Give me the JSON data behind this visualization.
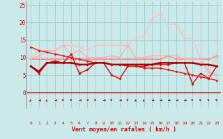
{
  "xlabel": "Vent moyen/en rafales ( km/h )",
  "xlim": [
    -0.5,
    23.5
  ],
  "ylim": [
    -4.5,
    26
  ],
  "yticks": [
    0,
    5,
    10,
    15,
    20,
    25
  ],
  "xticks": [
    0,
    1,
    2,
    3,
    4,
    5,
    6,
    7,
    8,
    9,
    10,
    11,
    12,
    13,
    14,
    15,
    16,
    17,
    18,
    19,
    20,
    21,
    22,
    23
  ],
  "bg_color": "#cce9e9",
  "grid_color": "#99cccc",
  "series": [
    {
      "y": [
        7.5,
        5.5,
        8.5,
        9.0,
        8.5,
        11.0,
        5.5,
        6.5,
        8.5,
        8.5,
        5.0,
        4.0,
        7.5,
        7.5,
        7.5,
        8.0,
        8.0,
        8.0,
        8.5,
        8.5,
        2.5,
        5.5,
        4.0,
        7.5
      ],
      "color": "#dd0000",
      "lw": 1.0,
      "marker": "D",
      "ms": 2.0,
      "zorder": 4
    },
    {
      "y": [
        7.5,
        6.0,
        8.5,
        8.5,
        8.5,
        8.5,
        8.0,
        8.0,
        8.5,
        8.5,
        8.0,
        8.0,
        8.0,
        8.0,
        8.0,
        8.0,
        8.5,
        8.5,
        8.5,
        8.5,
        8.5,
        8.0,
        8.0,
        7.5
      ],
      "color": "#aa0000",
      "lw": 1.8,
      "marker": "D",
      "ms": 2.0,
      "zorder": 5
    },
    {
      "y": [
        9.5,
        9.5,
        9.5,
        9.5,
        9.5,
        9.5,
        9.5,
        9.5,
        9.5,
        9.5,
        9.5,
        9.5,
        9.5,
        9.5,
        9.5,
        9.5,
        9.5,
        10.5,
        9.5,
        9.5,
        9.5,
        9.5,
        9.5,
        10.5
      ],
      "color": "#ff8888",
      "lw": 1.0,
      "marker": "D",
      "ms": 2.0,
      "zorder": 3
    },
    {
      "y": [
        9.5,
        10.5,
        12.0,
        12.0,
        13.5,
        11.0,
        12.0,
        10.0,
        10.0,
        10.0,
        10.5,
        10.0,
        13.5,
        10.0,
        10.0,
        10.5,
        10.5,
        10.5,
        10.5,
        9.5,
        9.5,
        9.5,
        6.0,
        5.0
      ],
      "color": "#ffaaaa",
      "lw": 1.0,
      "marker": "D",
      "ms": 2.0,
      "zorder": 3
    },
    {
      "y": [
        9.5,
        12.0,
        12.0,
        12.0,
        13.5,
        13.5,
        13.0,
        12.0,
        13.5,
        13.5,
        13.5,
        13.5,
        13.5,
        15.5,
        16.0,
        21.0,
        22.5,
        19.5,
        19.5,
        15.5,
        15.5,
        9.5,
        5.5,
        10.5
      ],
      "color": "#ffbbbb",
      "lw": 1.0,
      "marker": "D",
      "ms": 2.0,
      "zorder": 2
    },
    {
      "y": [
        13.0,
        12.0,
        11.5,
        11.0,
        10.5,
        10.0,
        9.5,
        9.0,
        8.5,
        8.5,
        8.0,
        8.0,
        7.5,
        7.5,
        7.0,
        7.0,
        7.0,
        6.5,
        6.0,
        5.5,
        5.0,
        4.5,
        4.0,
        3.5
      ],
      "color": "#ee1111",
      "lw": 1.0,
      "marker": "D",
      "ms": 2.0,
      "zorder": 4
    }
  ],
  "wind_arrows": [
    [
      0,
      225
    ],
    [
      1,
      270
    ],
    [
      2,
      225
    ],
    [
      3,
      270
    ],
    [
      4,
      315
    ],
    [
      5,
      315
    ],
    [
      6,
      270
    ],
    [
      7,
      45
    ],
    [
      8,
      315
    ],
    [
      9,
      270
    ],
    [
      10,
      315
    ],
    [
      11,
      270
    ],
    [
      12,
      315
    ],
    [
      13,
      225
    ],
    [
      14,
      225
    ],
    [
      15,
      270
    ],
    [
      16,
      270
    ],
    [
      17,
      270
    ],
    [
      18,
      270
    ],
    [
      19,
      270
    ],
    [
      20,
      315
    ],
    [
      21,
      315
    ],
    [
      22,
      315
    ],
    [
      23,
      315
    ]
  ]
}
